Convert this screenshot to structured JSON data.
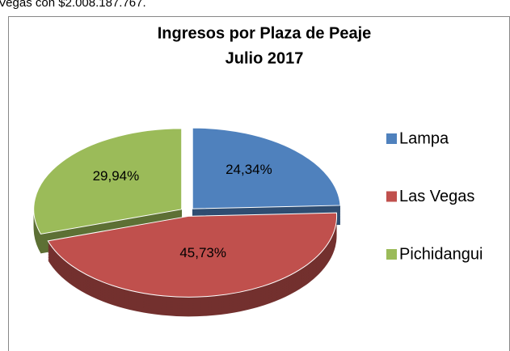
{
  "caption": "Vegas con $2.008.187.767.",
  "chart_data": {
    "type": "pie",
    "title": "Ingresos por Plaza de Peaje",
    "subtitle": "Julio 2017",
    "categories": [
      "Lampa",
      "Las Vegas",
      "Pichidangui"
    ],
    "values": [
      24.34,
      45.73,
      29.94
    ],
    "value_labels": [
      "24,34%",
      "45,73%",
      "29,94%"
    ],
    "colors": [
      "#4f81bd",
      "#c0504d",
      "#9bbb59"
    ],
    "legend": "right"
  }
}
